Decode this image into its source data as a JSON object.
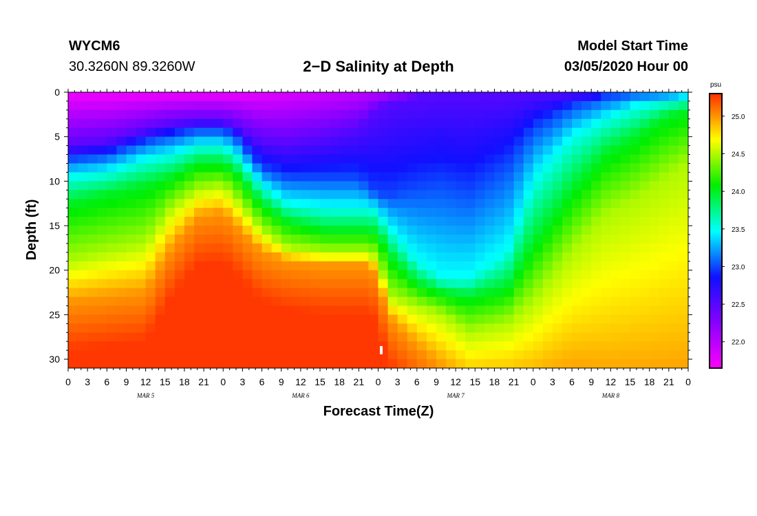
{
  "header": {
    "station": "WYCM6",
    "coords": "30.3260N 89.3260W",
    "title": "2−D Salinity at Depth",
    "model_label": "Model Start Time",
    "model_time": "03/05/2020 Hour 00"
  },
  "chart_data": {
    "type": "heatmap",
    "title": "2−D Salinity at Depth",
    "xlabel": "Forecast Time(Z)",
    "ylabel": "Depth (ft)",
    "x_tick_labels": [
      "0",
      "3",
      "6",
      "9",
      "12",
      "15",
      "18",
      "21",
      "0",
      "3",
      "6",
      "9",
      "12",
      "15",
      "18",
      "21",
      "0",
      "3",
      "6",
      "9",
      "12",
      "15",
      "18",
      "21",
      "0",
      "3",
      "6",
      "9",
      "12",
      "15",
      "18",
      "21",
      "0"
    ],
    "x_range_hours": [
      0,
      96
    ],
    "date_labels": [
      {
        "label": "MAR 5",
        "hour": 12
      },
      {
        "label": "MAR 6",
        "hour": 36
      },
      {
        "label": "MAR 7",
        "hour": 60
      },
      {
        "label": "MAR 8",
        "hour": 84
      }
    ],
    "y_ticks": [
      0,
      5,
      10,
      15,
      20,
      25,
      30
    ],
    "ylim": [
      0,
      31
    ],
    "y_inverted": true,
    "colorbar": {
      "unit": "psu",
      "range": [
        21.65,
        25.3
      ],
      "ticks": [
        "22.0",
        "22.5",
        "23.0",
        "23.5",
        "24.0",
        "24.5",
        "25.0"
      ],
      "colors": [
        "#ff00ff",
        "#8800ff",
        "#1010ff",
        "#00ffff",
        "#00ee00",
        "#ffff00",
        "#ff3000"
      ]
    },
    "isolines": {
      "description": "depth (ft) of salinity contours per forecast hour",
      "hours": [
        0,
        6,
        12,
        16,
        20,
        24,
        26,
        30,
        34,
        40,
        45,
        47,
        49,
        50,
        54,
        58,
        62,
        68,
        72,
        78,
        83,
        88,
        92,
        96
      ],
      "c22.5": [
        6.0,
        5.5,
        4.2,
        3.5,
        3.2,
        3.2,
        3.8,
        5.5,
        5.8,
        5.0,
        4.0,
        2.5,
        1.5,
        1.0,
        0.5,
        0.0,
        0.0,
        0.0,
        0.0,
        0.0,
        0.0,
        0.0,
        0.0,
        0.0
      ],
      "c23.0": [
        7.5,
        7.0,
        5.5,
        4.8,
        4.2,
        4.2,
        5.0,
        8.5,
        9.5,
        9.5,
        9.5,
        11.0,
        11.5,
        11.5,
        10.5,
        10.0,
        11.0,
        8.0,
        4.0,
        1.5,
        0.5,
        0.0,
        0.0,
        0.0
      ],
      "c23.5": [
        9.5,
        9.0,
        7.5,
        7.0,
        6.0,
        6.0,
        7.0,
        10.5,
        12.5,
        13.0,
        13.0,
        13.0,
        14.5,
        15.5,
        19.0,
        21.0,
        21.0,
        18.0,
        10.0,
        5.0,
        3.0,
        1.5,
        1.0,
        0.5
      ],
      "c24.0": [
        12.5,
        11.5,
        10.5,
        9.5,
        8.0,
        8.0,
        9.0,
        12.5,
        14.5,
        15.5,
        15.5,
        15.5,
        17.0,
        18.5,
        21.5,
        22.5,
        23.0,
        22.0,
        17.0,
        11.0,
        7.0,
        5.0,
        3.0,
        2.0
      ],
      "c24.5": [
        19.0,
        18.0,
        17.0,
        13.0,
        11.0,
        10.5,
        12.0,
        15.5,
        17.5,
        18.0,
        18.0,
        18.0,
        21.0,
        23.0,
        24.0,
        25.0,
        27.0,
        26.0,
        23.5,
        18.0,
        14.0,
        12.0,
        10.0,
        8.0
      ],
      "c25.0": [
        23.5,
        23.0,
        22.5,
        17.5,
        14.0,
        13.5,
        15.0,
        18.0,
        19.0,
        19.5,
        19.5,
        19.5,
        23.5,
        25.5,
        28.5,
        31.0,
        33.0,
        33.0,
        33.0,
        32.0,
        33.0,
        33.0,
        33.0,
        33.0
      ]
    }
  }
}
